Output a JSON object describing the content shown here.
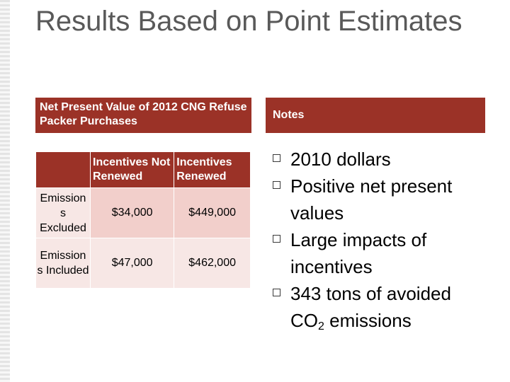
{
  "slide": {
    "title": "Results Based on Point Estimates"
  },
  "left_panel": {
    "header": "Net Present Value of 2012 CNG Refuse Packer Purchases",
    "table": {
      "columns": [
        "Incentives Not Renewed",
        "Incentives Renewed"
      ],
      "rows": [
        {
          "label": "Emission s Excluded",
          "values": [
            "$34,000",
            "$449,000"
          ]
        },
        {
          "label": "Emission s Included",
          "values": [
            "$47,000",
            "$462,000"
          ]
        }
      ]
    }
  },
  "notes": {
    "header": "Notes",
    "items": [
      {
        "text": "2010 dollars"
      },
      {
        "text": "Positive net present values"
      },
      {
        "text": "Large impacts of incentives"
      },
      {
        "text_pre": "343 tons of avoided CO",
        "sub": "2",
        "text_post": " emissions"
      }
    ]
  },
  "colors": {
    "header_bg": "#9b3227",
    "cell_dark": "#f2cfcb",
    "cell_light": "#f7e7e5",
    "title": "#595959"
  },
  "icons": {
    "bullet": "hollow-square-bullet-icon"
  }
}
